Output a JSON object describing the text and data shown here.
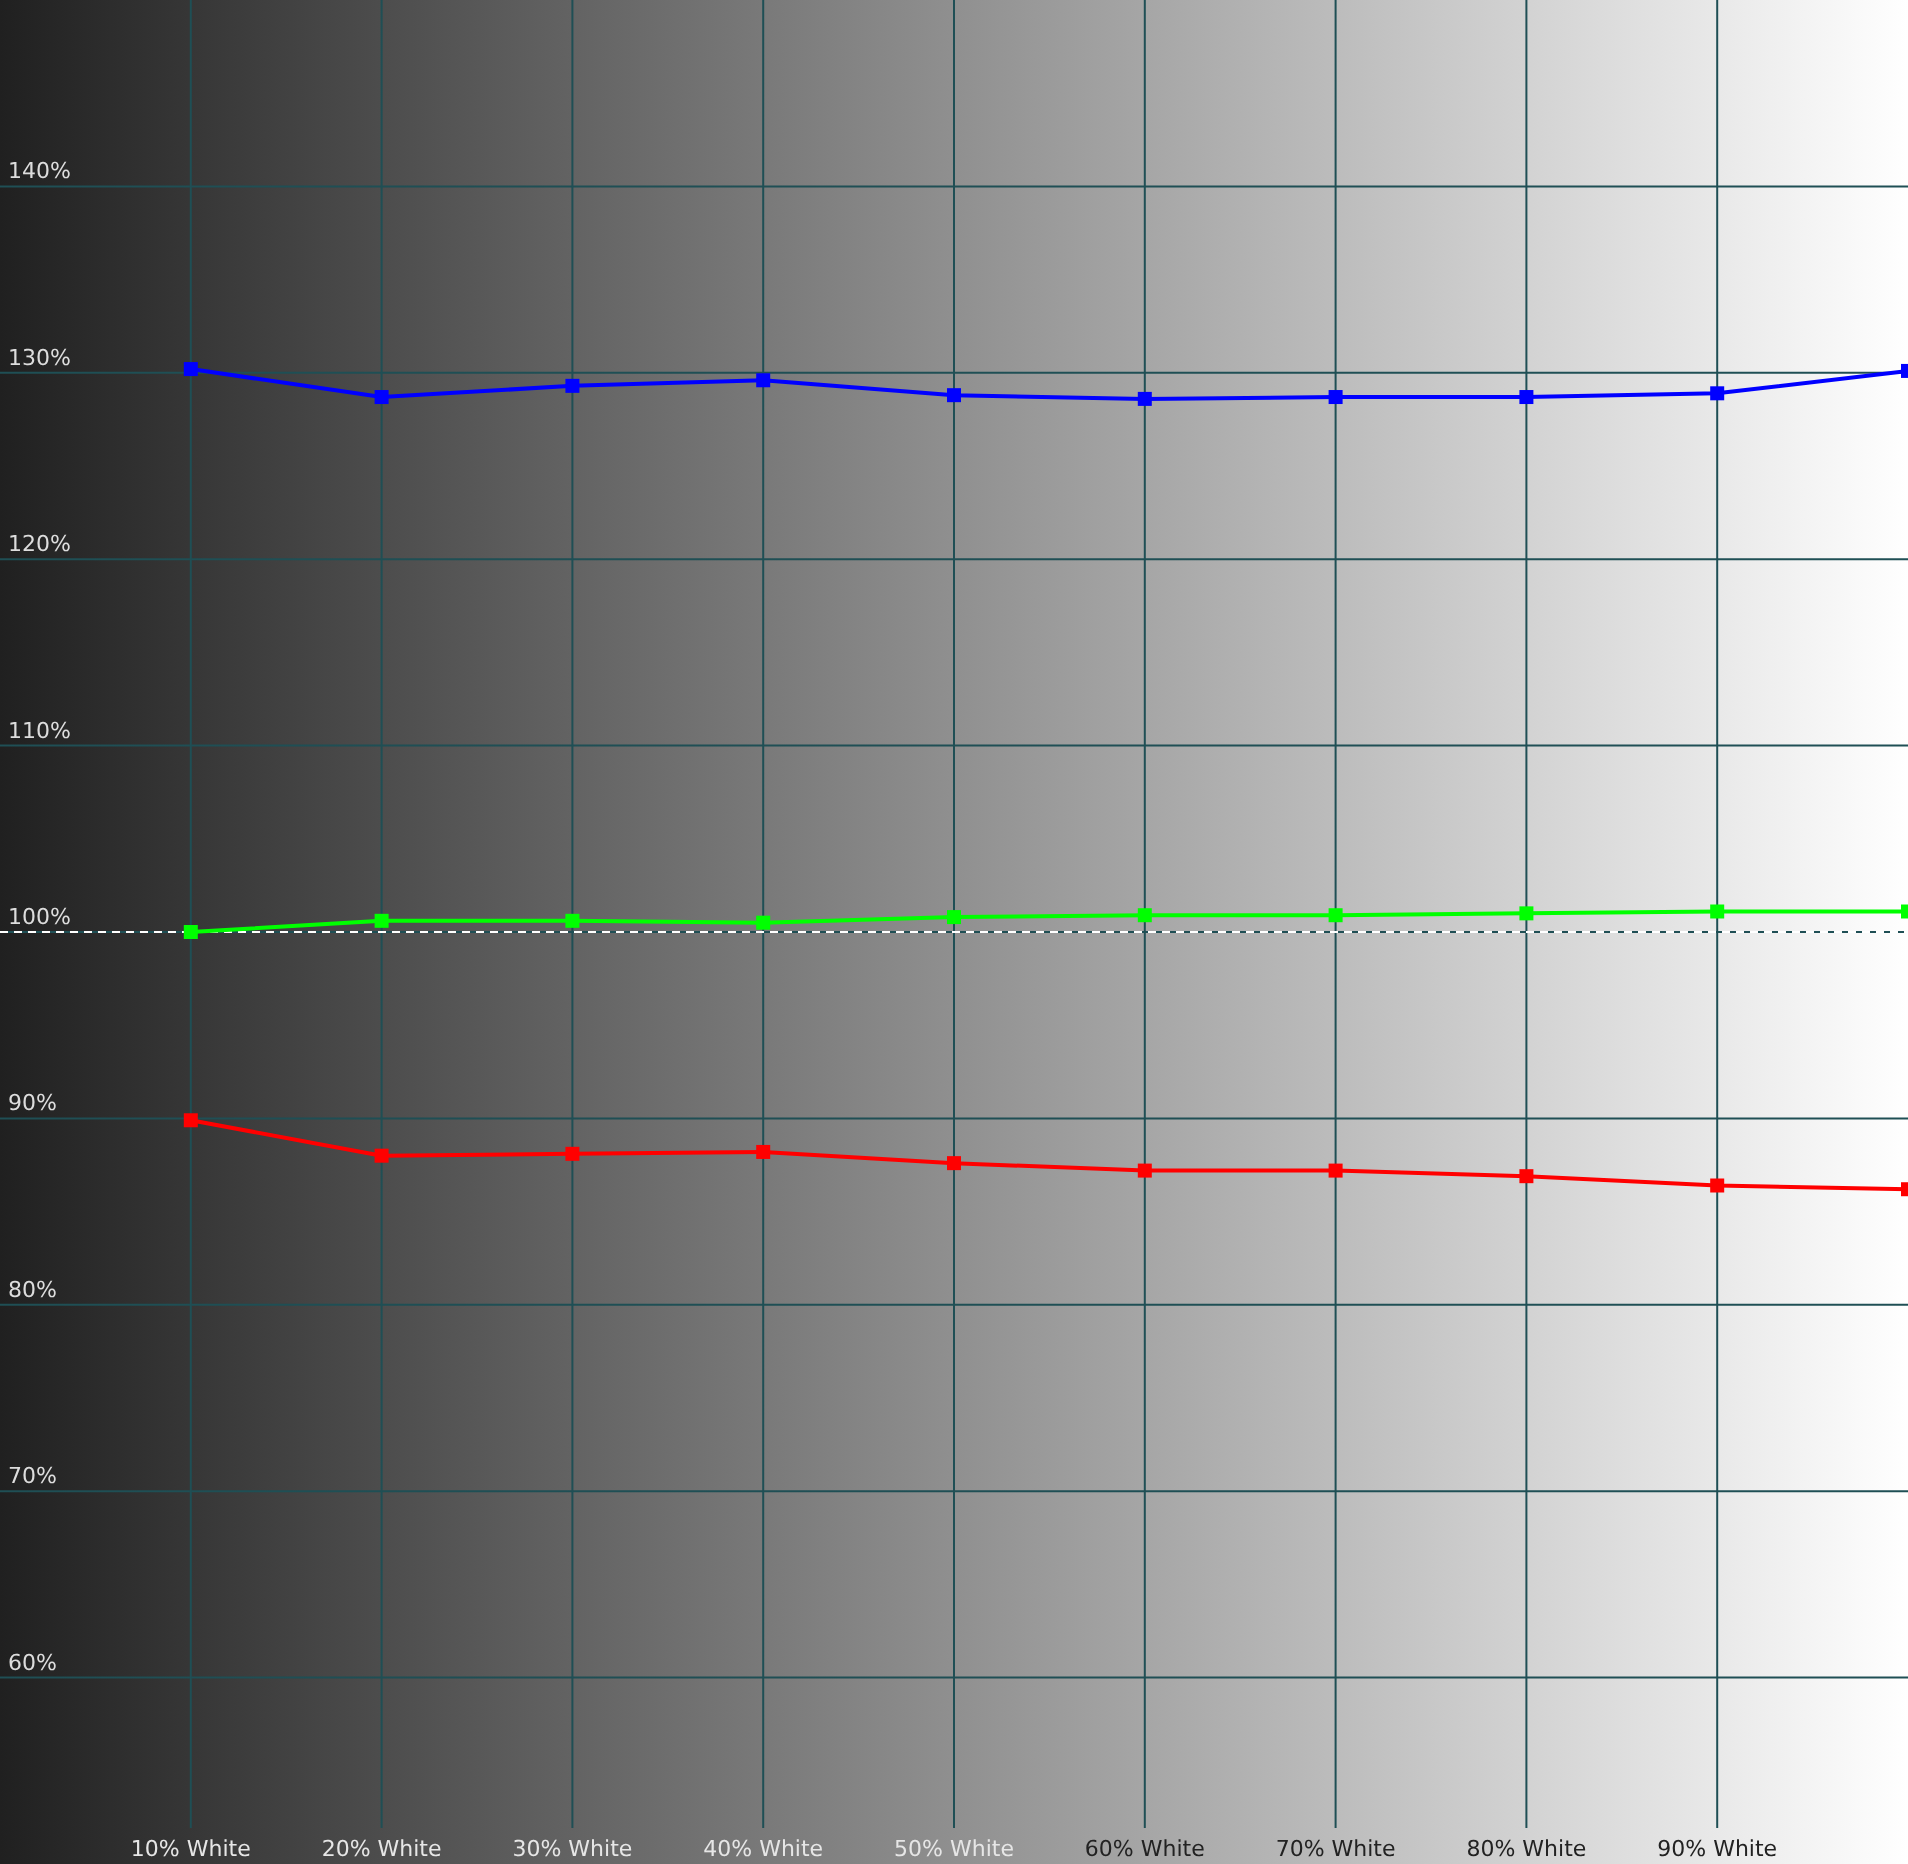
{
  "chart_data": {
    "type": "line",
    "x": [
      10,
      20,
      30,
      40,
      50,
      60,
      70,
      80,
      90,
      100
    ],
    "series": [
      {
        "color": "#0000ff",
        "values": [
          130.2,
          128.7,
          129.3,
          129.6,
          128.8,
          128.6,
          128.7,
          128.7,
          128.9,
          130.1
        ]
      },
      {
        "color": "#00ff00",
        "values": [
          100.0,
          100.6,
          100.6,
          100.5,
          100.8,
          100.9,
          100.9,
          101.0,
          101.1,
          101.1
        ]
      },
      {
        "color": "#ff0000",
        "values": [
          89.9,
          88.0,
          88.1,
          88.2,
          87.6,
          87.2,
          87.2,
          86.9,
          86.4,
          86.2
        ]
      }
    ],
    "xlim": [
      0,
      100
    ],
    "xticks": [
      {
        "value": 10,
        "label": "10% White"
      },
      {
        "value": 20,
        "label": "20% White"
      },
      {
        "value": 30,
        "label": "30% White"
      },
      {
        "value": 40,
        "label": "40% White"
      },
      {
        "value": 50,
        "label": "50% White"
      },
      {
        "value": 60,
        "label": "60% White"
      },
      {
        "value": 70,
        "label": "70% White"
      },
      {
        "value": 80,
        "label": "80% White"
      },
      {
        "value": 90,
        "label": "90% White"
      }
    ],
    "ylim": [
      50,
      150
    ],
    "yticks": [
      {
        "value": 60,
        "label": "60%"
      },
      {
        "value": 70,
        "label": "70%"
      },
      {
        "value": 80,
        "label": "80%"
      },
      {
        "value": 90,
        "label": "90%"
      },
      {
        "value": 100,
        "label": "100%"
      },
      {
        "value": 110,
        "label": "110%"
      },
      {
        "value": 120,
        "label": "120%"
      },
      {
        "value": 130,
        "label": "130%"
      },
      {
        "value": 140,
        "label": "140%"
      }
    ],
    "grid": true,
    "marker": "square",
    "line_style": "solid",
    "ref_lines": [
      {
        "axis": "y",
        "value": 100,
        "color": "#ffffff",
        "line_style": "dashed"
      }
    ]
  }
}
